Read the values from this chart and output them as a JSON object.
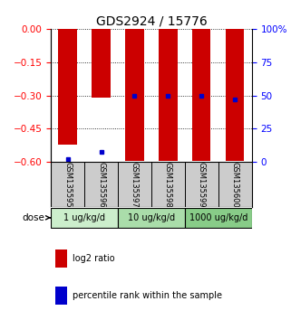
{
  "title": "GDS2924 / 15776",
  "samples": [
    "GSM135595",
    "GSM135596",
    "GSM135597",
    "GSM135598",
    "GSM135599",
    "GSM135600"
  ],
  "log2_ratios": [
    -0.52,
    -0.31,
    -0.595,
    -0.595,
    -0.595,
    -0.595
  ],
  "percentile_ranks": [
    2.0,
    8.0,
    50.0,
    50.0,
    50.0,
    47.0
  ],
  "ylim_left": [
    -0.6,
    0.0
  ],
  "ylim_right": [
    0,
    100
  ],
  "yticks_left": [
    0,
    -0.15,
    -0.3,
    -0.45,
    -0.6
  ],
  "yticks_right": [
    0,
    25,
    50,
    75,
    100
  ],
  "bar_color": "#cc0000",
  "percentile_color": "#0000cc",
  "dose_groups": [
    {
      "label": "1 ug/kg/d",
      "samples": [
        0,
        1
      ],
      "color": "#cceecc"
    },
    {
      "label": "10 ug/kg/d",
      "samples": [
        2,
        3
      ],
      "color": "#aaddaa"
    },
    {
      "label": "1000 ug/kg/d",
      "samples": [
        4,
        5
      ],
      "color": "#88cc88"
    }
  ],
  "legend_items": [
    {
      "label": "log2 ratio",
      "color": "#cc0000"
    },
    {
      "label": "percentile rank within the sample",
      "color": "#0000cc"
    }
  ],
  "dose_label": "dose",
  "bar_width": 0.55,
  "background_color": "#ffffff",
  "plot_bg_color": "#ffffff",
  "sample_label_bg": "#cccccc",
  "title_fontsize": 10,
  "tick_fontsize": 7.5,
  "legend_fontsize": 7
}
